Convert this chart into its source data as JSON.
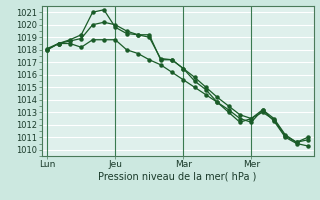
{
  "title": "Pression niveau de la mer( hPa )",
  "bg_color": "#cce8e0",
  "plot_bg": "#dff0ec",
  "grid_color_major": "#ffffff",
  "grid_color_minor": "#f0d8d8",
  "line_color": "#1a5c28",
  "vline_color": "#3a7a50",
  "ylim": [
    1009.5,
    1021.5
  ],
  "yticks": [
    1010,
    1011,
    1012,
    1013,
    1014,
    1015,
    1016,
    1017,
    1018,
    1019,
    1020,
    1021
  ],
  "xtick_labels": [
    "Lun",
    "Jeu",
    "Mar",
    "Mer"
  ],
  "xtick_positions": [
    0,
    6,
    12,
    18
  ],
  "vline_positions": [
    0,
    6,
    12,
    18
  ],
  "series1": [
    1018.0,
    1018.5,
    1018.5,
    1018.2,
    1018.8,
    1018.8,
    1018.8,
    1018.0,
    1017.7,
    1017.2,
    1016.8,
    1016.2,
    1015.6,
    1015.0,
    1014.4,
    1013.8,
    1013.2,
    1012.5,
    1012.2,
    1013.2,
    1012.3,
    1011.0,
    1010.5,
    1010.3
  ],
  "series2": [
    1018.0,
    1018.5,
    1018.8,
    1019.2,
    1021.0,
    1021.2,
    1019.8,
    1019.3,
    1019.2,
    1019.2,
    1017.2,
    1017.2,
    1016.5,
    1015.5,
    1014.8,
    1013.8,
    1013.0,
    1012.2,
    1012.5,
    1013.2,
    1012.5,
    1011.2,
    1010.6,
    1011.0
  ],
  "series3": [
    1018.1,
    1018.5,
    1018.7,
    1018.9,
    1020.0,
    1020.2,
    1020.0,
    1019.5,
    1019.2,
    1019.0,
    1017.3,
    1017.2,
    1016.5,
    1015.8,
    1015.0,
    1014.2,
    1013.5,
    1012.8,
    1012.5,
    1013.0,
    1012.4,
    1011.1,
    1010.6,
    1010.8
  ],
  "n_points": 24
}
